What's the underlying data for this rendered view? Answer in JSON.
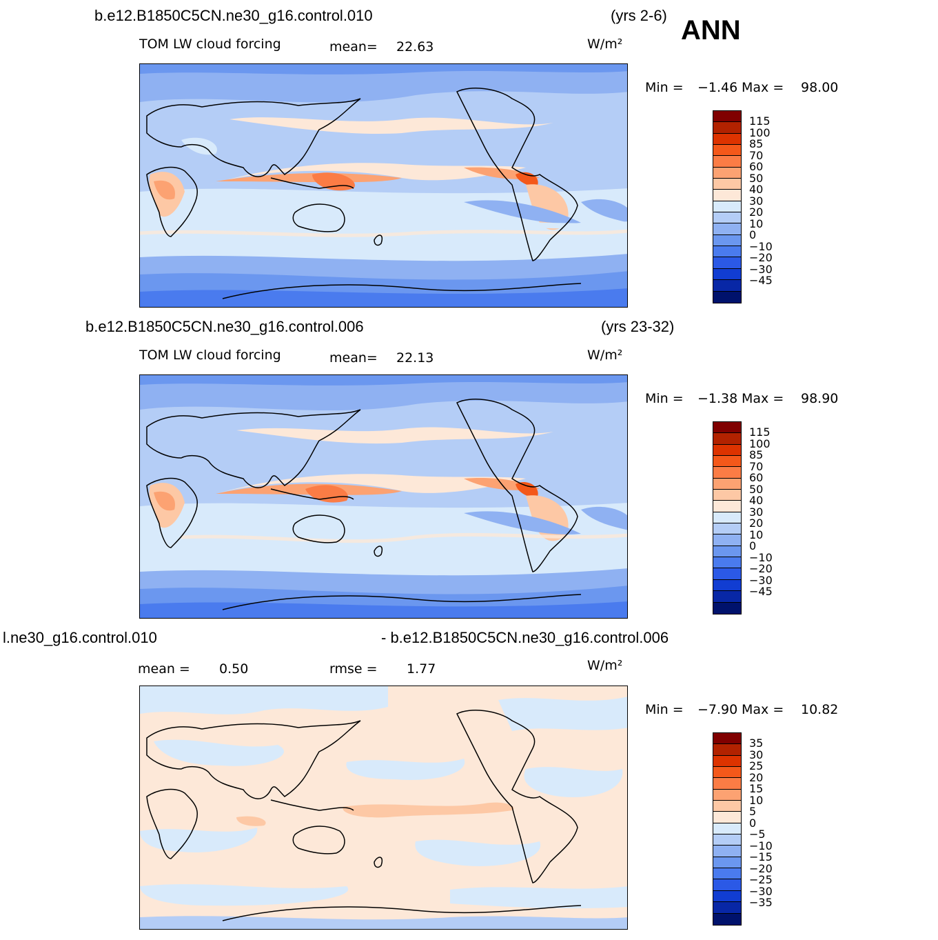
{
  "season": "ANN",
  "panels": [
    {
      "case_name": "b.e12.B1850C5CN.ne30_g16.control.010",
      "years": "(yrs 2-6)",
      "variable": "TOM LW cloud forcing",
      "stat_label": "mean=",
      "stat_value": "22.63",
      "units": "W/m²",
      "min_label": "Min =",
      "min_value": "−1.46",
      "max_label": "Max =",
      "max_value": "98.00",
      "colors": [
        "#800000",
        "#b22200",
        "#dd3300",
        "#f4581a",
        "#fb7c45",
        "#fca272",
        "#fdc8a5",
        "#fde8d8",
        "#d8eafb",
        "#b4cdf6",
        "#8fb1f2",
        "#6b97ef",
        "#4a7bee",
        "#2b59e6",
        "#113dd2",
        "#0827a6",
        "#00126c"
      ],
      "levels": [
        "115",
        "100",
        "85",
        "70",
        "60",
        "50",
        "40",
        "30",
        "20",
        "10",
        "0",
        "−10",
        "−20",
        "−30",
        "−45"
      ]
    },
    {
      "case_name": "b.e12.B1850C5CN.ne30_g16.control.006",
      "years": "(yrs 23-32)",
      "variable": "TOM LW cloud forcing",
      "stat_label": "mean=",
      "stat_value": "22.13",
      "units": "W/m²",
      "min_label": "Min =",
      "min_value": "−1.38",
      "max_label": "Max =",
      "max_value": "98.90",
      "colors": [
        "#800000",
        "#b22200",
        "#dd3300",
        "#f4581a",
        "#fb7c45",
        "#fca272",
        "#fdc8a5",
        "#fde8d8",
        "#d8eafb",
        "#b4cdf6",
        "#8fb1f2",
        "#6b97ef",
        "#4a7bee",
        "#2b59e6",
        "#113dd2",
        "#0827a6",
        "#00126c"
      ],
      "levels": [
        "115",
        "100",
        "85",
        "70",
        "60",
        "50",
        "40",
        "30",
        "20",
        "10",
        "0",
        "−10",
        "−20",
        "−30",
        "−45"
      ]
    },
    {
      "case_left": "l.ne30_g16.control.010",
      "case_right": "- b.e12.B1850C5CN.ne30_g16.control.006",
      "mean_label": "mean =",
      "mean_value": "0.50",
      "rmse_label": "rmse =",
      "rmse_value": "1.77",
      "units": "W/m²",
      "min_label": "Min =",
      "min_value": "−7.90",
      "max_label": "Max =",
      "max_value": "10.82",
      "colors": [
        "#800000",
        "#b22200",
        "#dd3300",
        "#f4581a",
        "#fb7c45",
        "#fca272",
        "#fdc8a5",
        "#fde8d8",
        "#d8eafb",
        "#b4cdf6",
        "#8fb1f2",
        "#6b97ef",
        "#4a7bee",
        "#2b59e6",
        "#113dd2",
        "#0827a6",
        "#00126c"
      ],
      "levels": [
        "35",
        "30",
        "25",
        "20",
        "15",
        "10",
        "5",
        "0",
        "−5",
        "−10",
        "−15",
        "−20",
        "−25",
        "−30",
        "−35"
      ]
    }
  ]
}
